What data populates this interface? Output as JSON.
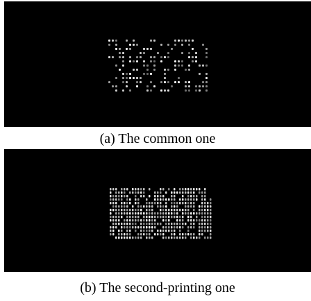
{
  "figure": {
    "panels": [
      {
        "caption": "(a) The common one"
      },
      {
        "caption": "(b) The second-printing one"
      }
    ]
  }
}
